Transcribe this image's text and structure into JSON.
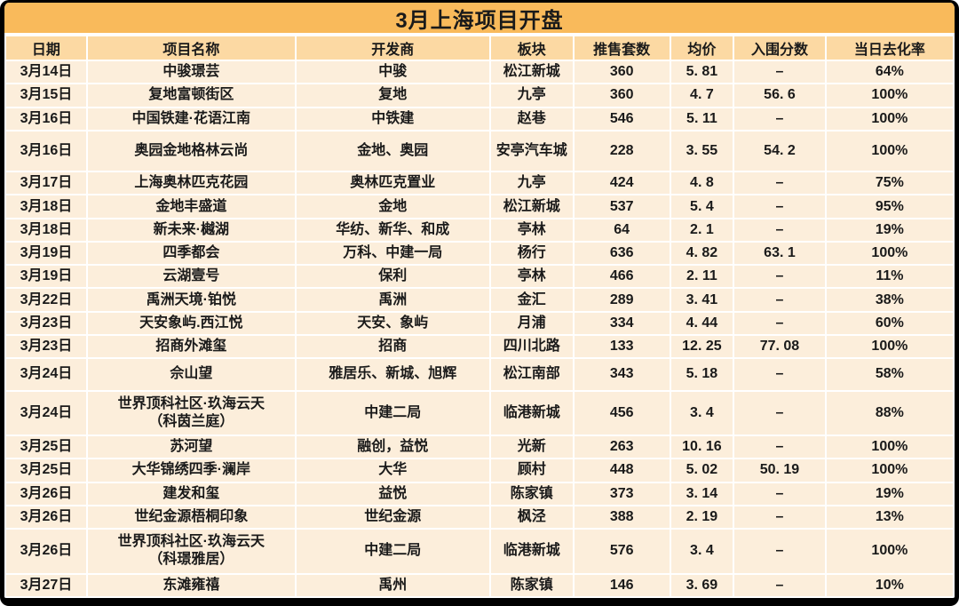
{
  "title": "3月上海项目开盘",
  "colors": {
    "title_bg": "#F9BA5B",
    "header_bg": "#FCD9A3",
    "row_bg": "#FCEEDB",
    "grid_line": "#FFFFFF",
    "frame": "#000000",
    "text": "#1A1A1A"
  },
  "chart_data": {
    "type": "table",
    "title": "3月上海项目开盘",
    "columns": [
      "日期",
      "项目名称",
      "开发商",
      "板块",
      "推售套数",
      "均价",
      "入围分数",
      "当日去化率"
    ],
    "rows": [
      [
        "3月14日",
        "中骏璟芸",
        "中骏",
        "松江新城",
        "360",
        "5. 81",
        "–",
        "64%"
      ],
      [
        "3月15日",
        "复地富顿街区",
        "复地",
        "九亭",
        "360",
        "4. 7",
        "56. 6",
        "100%"
      ],
      [
        "3月16日",
        "中国铁建·花语江南",
        "中铁建",
        "赵巷",
        "546",
        "5. 11",
        "–",
        "100%"
      ],
      [
        "3月16日",
        "奥园金地格林云尚",
        "金地、奥园",
        "安亭汽车城",
        "228",
        "3. 55",
        "54. 2",
        "100%"
      ],
      [
        "3月17日",
        "上海奥林匹克花园",
        "奥林匹克置业",
        "九亭",
        "424",
        "4. 8",
        "–",
        "75%"
      ],
      [
        "3月18日",
        "金地丰盛道",
        "金地",
        "松江新城",
        "537",
        "5. 4",
        "–",
        "95%"
      ],
      [
        "3月18日",
        "新未来·樾湖",
        "华纺、新华、和成",
        "亭林",
        "64",
        "2. 1",
        "–",
        "19%"
      ],
      [
        "3月19日",
        "四季都会",
        "万科、中建一局",
        "杨行",
        "636",
        "4. 82",
        "63. 1",
        "100%"
      ],
      [
        "3月19日",
        "云湖壹号",
        "保利",
        "亭林",
        "466",
        "2. 11",
        "–",
        "11%"
      ],
      [
        "3月22日",
        "禹洲天境·铂悦",
        "禹洲",
        "金汇",
        "289",
        "3. 41",
        "–",
        "38%"
      ],
      [
        "3月23日",
        "天安象屿.西江悦",
        "天安、象屿",
        "月浦",
        "334",
        "4. 44",
        "–",
        "60%"
      ],
      [
        "3月23日",
        "招商外滩玺",
        "招商",
        "四川北路",
        "133",
        "12. 25",
        "77. 08",
        "100%"
      ],
      [
        "3月24日",
        "佘山望",
        "雅居乐、新城、旭辉",
        "松江南部",
        "343",
        "5. 18",
        "–",
        "58%"
      ],
      [
        "3月24日",
        "世界顶科社区·玖海云天\n（科茵兰庭）",
        "中建二局",
        "临港新城",
        "456",
        "3. 4",
        "–",
        "88%"
      ],
      [
        "3月25日",
        "苏河望",
        "融创，益悦",
        "光新",
        "263",
        "10. 16",
        "–",
        "100%"
      ],
      [
        "3月25日",
        "大华锦绣四季·澜岸",
        "大华",
        "顾村",
        "448",
        "5. 02",
        "50. 19",
        "100%"
      ],
      [
        "3月26日",
        "建发和玺",
        "益悦",
        "陈家镇",
        "373",
        "3. 14",
        "–",
        "19%"
      ],
      [
        "3月26日",
        "世纪金源梧桐印象",
        "世纪金源",
        "枫泾",
        "388",
        "2. 19",
        "–",
        "13%"
      ],
      [
        "3月26日",
        "世界顶科社区·玖海云天\n（科璟雅居）",
        "中建二局",
        "临港新城",
        "576",
        "3. 4",
        "–",
        "100%"
      ],
      [
        "3月27日",
        "东滩雍禧",
        "禹州",
        "陈家镇",
        "146",
        "3. 69",
        "–",
        "10%"
      ]
    ]
  }
}
